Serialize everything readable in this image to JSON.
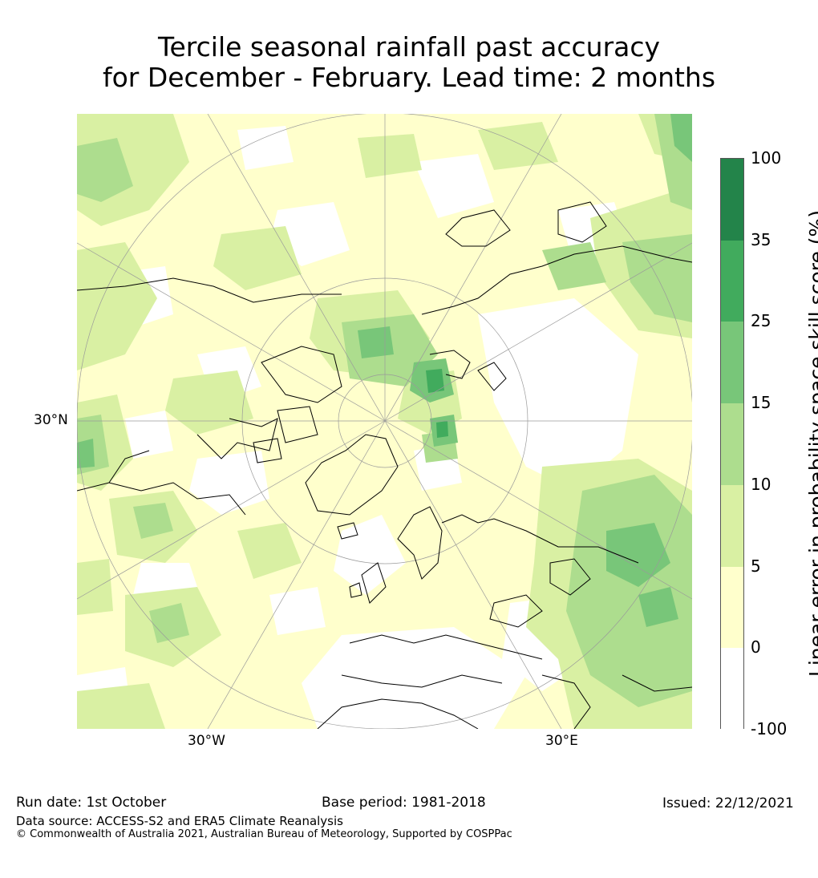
{
  "title": {
    "line1": "Tercile seasonal rainfall past accuracy",
    "line2": "for December - February. Lead time: 2 months"
  },
  "map": {
    "labels": {
      "lat_30n": "30°N",
      "lon_30w": "30°W",
      "lon_30e": "30°E"
    },
    "projection": "north-polar-stereographic",
    "colors": {
      "land_border": "#000000",
      "graticule": "#9a9a9a"
    }
  },
  "colorbar": {
    "title": "Linear error in probability space skill score (%)",
    "ticks": [
      "100",
      "35",
      "25",
      "15",
      "10",
      "5",
      "0",
      "-100"
    ],
    "bins": [
      {
        "from": "35",
        "to": "100",
        "color": "#23844a"
      },
      {
        "from": "25",
        "to": "35",
        "color": "#41ab5d"
      },
      {
        "from": "15",
        "to": "25",
        "color": "#78c679"
      },
      {
        "from": "10",
        "to": "15",
        "color": "#addd8e"
      },
      {
        "from": "5",
        "to": "10",
        "color": "#d9f0a3"
      },
      {
        "from": "0",
        "to": "5",
        "color": "#ffffcc"
      },
      {
        "from": "-100",
        "to": "0",
        "color": "#ffffff"
      }
    ]
  },
  "footer": {
    "run_date": "Run date: 1st October",
    "base_period": "Base period: 1981-2018",
    "issued": "Issued: 22/12/2021",
    "data_source": "Data source: ACCESS-S2 and ERA5 Climate Reanalysis",
    "copyright": "© Commonwealth of Australia 2021, Australian Bureau of Meteorology, Supported by COSPPac"
  }
}
